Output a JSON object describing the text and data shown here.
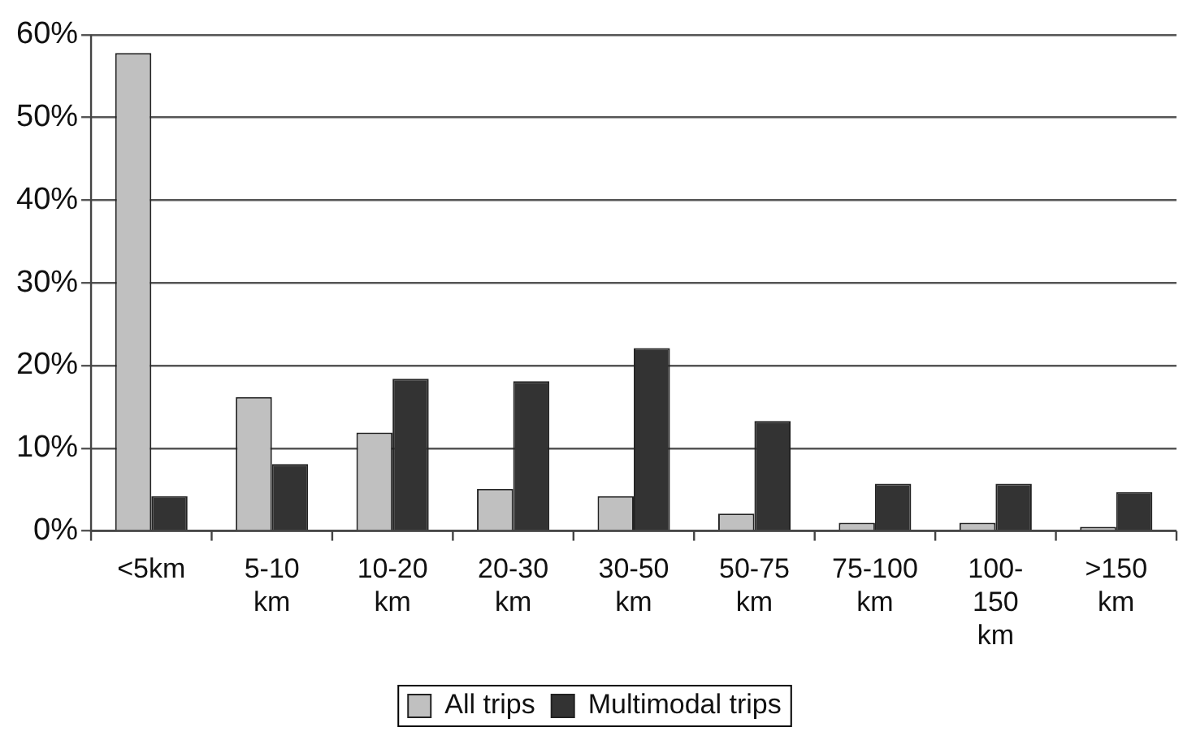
{
  "chart_data": {
    "type": "bar",
    "categories": [
      "<5km",
      "5-10 km",
      "10-20 km",
      "20-30 km",
      "30-50 km",
      "50-75 km",
      "75-100 km",
      "100-150 km",
      ">150 km"
    ],
    "series": [
      {
        "name": "All trips",
        "color": "#c0c0c0",
        "values": [
          57.8,
          16.2,
          11.9,
          5.1,
          4.2,
          2.1,
          1.0,
          1.0,
          0.5
        ]
      },
      {
        "name": "Multimodal trips",
        "color": "#333333",
        "values": [
          4.2,
          8.1,
          18.4,
          18.1,
          22.1,
          13.3,
          5.7,
          5.7,
          4.7
        ]
      }
    ],
    "ylim": [
      0,
      60
    ],
    "yticks": [
      {
        "value": 0,
        "label": "0%"
      },
      {
        "value": 10,
        "label": "10%"
      },
      {
        "value": 20,
        "label": "20%"
      },
      {
        "value": 30,
        "label": "30%"
      },
      {
        "value": 40,
        "label": "40%"
      },
      {
        "value": 50,
        "label": "50%"
      },
      {
        "value": 60,
        "label": "60%"
      }
    ],
    "grid": "y",
    "legend": "bottom"
  }
}
